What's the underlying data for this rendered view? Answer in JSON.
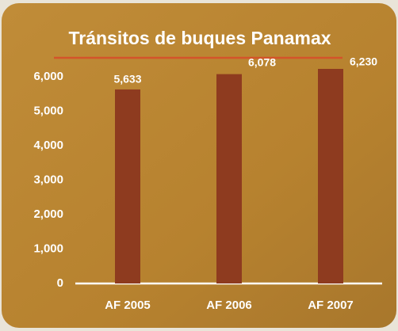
{
  "chart_data": {
    "type": "bar",
    "title": "Tránsitos de buques Panamax",
    "categories": [
      "AF 2005",
      "AF 2006",
      "AF 2007"
    ],
    "values": [
      5633,
      6078,
      6230
    ],
    "value_labels": [
      "5,633",
      "6,078",
      "6,230"
    ],
    "color": "#8e3b1f",
    "ylim": [
      0,
      6000
    ],
    "yticks": [
      0,
      {
        "value": 1000,
        "label": "1,000"
      },
      {
        "value": 2000,
        "label": "2,000"
      },
      {
        "value": 3000,
        "label": "3,000"
      },
      {
        "value": 4000,
        "label": "4,000"
      },
      {
        "value": 5000,
        "label": "5,000"
      },
      {
        "value": 6000,
        "label": "6,000"
      }
    ],
    "grid": false
  }
}
